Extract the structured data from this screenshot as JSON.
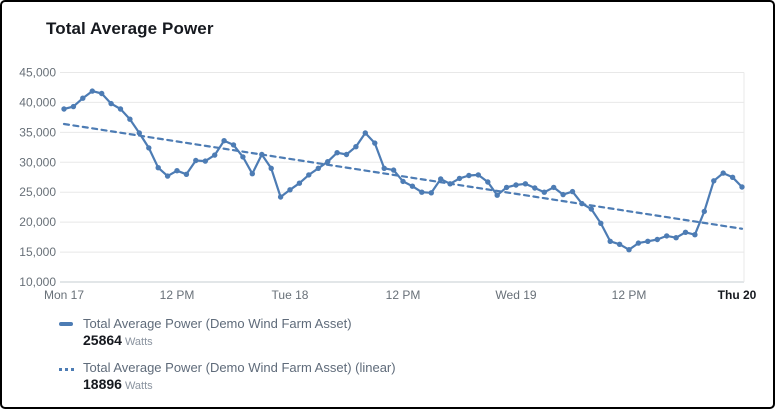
{
  "header": {
    "title": "Total Average Power"
  },
  "colors": {
    "series_blue": "#4d7cb4",
    "grid_line": "#e8e8e8",
    "axis_line": "#c6ccd2",
    "tick_text": "#687078",
    "tick_text_emphasis": "#16191f",
    "title_text": "#16191f",
    "legend_text": "#5f6b7a",
    "value_text": "#16191f",
    "unit_text": "#8a939f"
  },
  "chart_data": {
    "type": "line",
    "title": "Total Average Power",
    "grid": true,
    "legend_position": "bottom-left",
    "x_axis": {
      "span_hours": 72,
      "ticks": [
        {
          "label": "Mon 17",
          "hour": 0,
          "bold": false
        },
        {
          "label": "12 PM",
          "hour": 12,
          "bold": false
        },
        {
          "label": "Tue 18",
          "hour": 24,
          "bold": false
        },
        {
          "label": "12 PM",
          "hour": 36,
          "bold": false
        },
        {
          "label": "Wed 19",
          "hour": 48,
          "bold": false
        },
        {
          "label": "12 PM",
          "hour": 60,
          "bold": false
        },
        {
          "label": "Thu 20",
          "hour": 72,
          "bold": true
        }
      ]
    },
    "y_axis": {
      "min": 10000,
      "max": 45000,
      "step": 5000,
      "tick_labels": [
        "45,000",
        "40,000",
        "35,000",
        "30,000",
        "25,000",
        "20,000",
        "15,000",
        "10,000"
      ],
      "unit": "Watts"
    },
    "series": [
      {
        "name": "Total Average Power (Demo Wind Farm Asset)",
        "line_style": "solid",
        "markers": true,
        "color": "#4d7cb4",
        "latest_value": "25864",
        "unit": "Watts",
        "x_start_hour": 0,
        "x_step_hours": 1,
        "values": [
          38900,
          39300,
          40700,
          41900,
          41500,
          39800,
          38900,
          37200,
          34900,
          32400,
          29100,
          27700,
          28600,
          28000,
          30300,
          30200,
          31200,
          33600,
          32900,
          30900,
          28100,
          31300,
          29000,
          24200,
          25400,
          26500,
          27900,
          29000,
          30100,
          31600,
          31300,
          32600,
          34900,
          33200,
          29000,
          28700,
          26800,
          26000,
          25000,
          24900,
          27200,
          26400,
          27300,
          27800,
          27900,
          26700,
          24500,
          25800,
          26200,
          26400,
          25700,
          25000,
          25800,
          24600,
          25100,
          23100,
          22200,
          19800,
          16800,
          16300,
          15400,
          16500,
          16800,
          17100,
          17700,
          17400,
          18300,
          17900,
          21800,
          26900,
          28200,
          27500,
          25864
        ]
      },
      {
        "name": "Total Average Power (Demo Wind Farm Asset) (linear)",
        "line_style": "dashed",
        "markers": false,
        "color": "#4d7cb4",
        "latest_value": "18896",
        "unit": "Watts",
        "trend_endpoint_hours": [
          0,
          72
        ],
        "trend_endpoint_values": [
          36400,
          18896
        ]
      }
    ]
  },
  "legend": {
    "items": [
      {
        "marker": "solid-line",
        "label": "Total Average Power (Demo Wind Farm Asset)",
        "value": "25864",
        "unit": "Watts"
      },
      {
        "marker": "dashed-line",
        "label": "Total Average Power (Demo Wind Farm Asset) (linear)",
        "value": "18896",
        "unit": "Watts"
      }
    ]
  }
}
